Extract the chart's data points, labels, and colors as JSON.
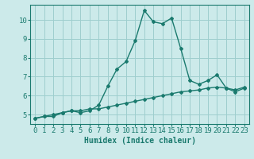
{
  "xlabel": "Humidex (Indice chaleur)",
  "x": [
    0,
    1,
    2,
    3,
    4,
    5,
    6,
    7,
    8,
    9,
    10,
    11,
    12,
    13,
    14,
    15,
    16,
    17,
    18,
    19,
    20,
    21,
    22,
    23
  ],
  "line1": [
    4.8,
    4.9,
    4.9,
    5.1,
    5.2,
    5.1,
    5.2,
    5.5,
    6.5,
    7.4,
    7.8,
    8.9,
    10.5,
    9.9,
    9.8,
    10.1,
    8.5,
    6.8,
    6.6,
    6.8,
    7.1,
    6.4,
    6.2,
    6.4
  ],
  "line2": [
    4.8,
    4.9,
    5.0,
    5.1,
    5.2,
    5.2,
    5.3,
    5.3,
    5.4,
    5.5,
    5.6,
    5.7,
    5.8,
    5.9,
    6.0,
    6.1,
    6.2,
    6.25,
    6.3,
    6.4,
    6.45,
    6.4,
    6.3,
    6.45
  ],
  "line_color": "#1a7a6e",
  "bg_color": "#cceaea",
  "grid_color": "#9ecece",
  "ylim": [
    4.5,
    10.8
  ],
  "yticks": [
    5,
    6,
    7,
    8,
    9,
    10
  ],
  "xticks": [
    0,
    1,
    2,
    3,
    4,
    5,
    6,
    7,
    8,
    9,
    10,
    11,
    12,
    13,
    14,
    15,
    16,
    17,
    18,
    19,
    20,
    21,
    22,
    23
  ],
  "marker": "D",
  "markersize": 2.0,
  "linewidth": 1.0,
  "xlabel_fontsize": 7,
  "tick_fontsize": 6.5
}
